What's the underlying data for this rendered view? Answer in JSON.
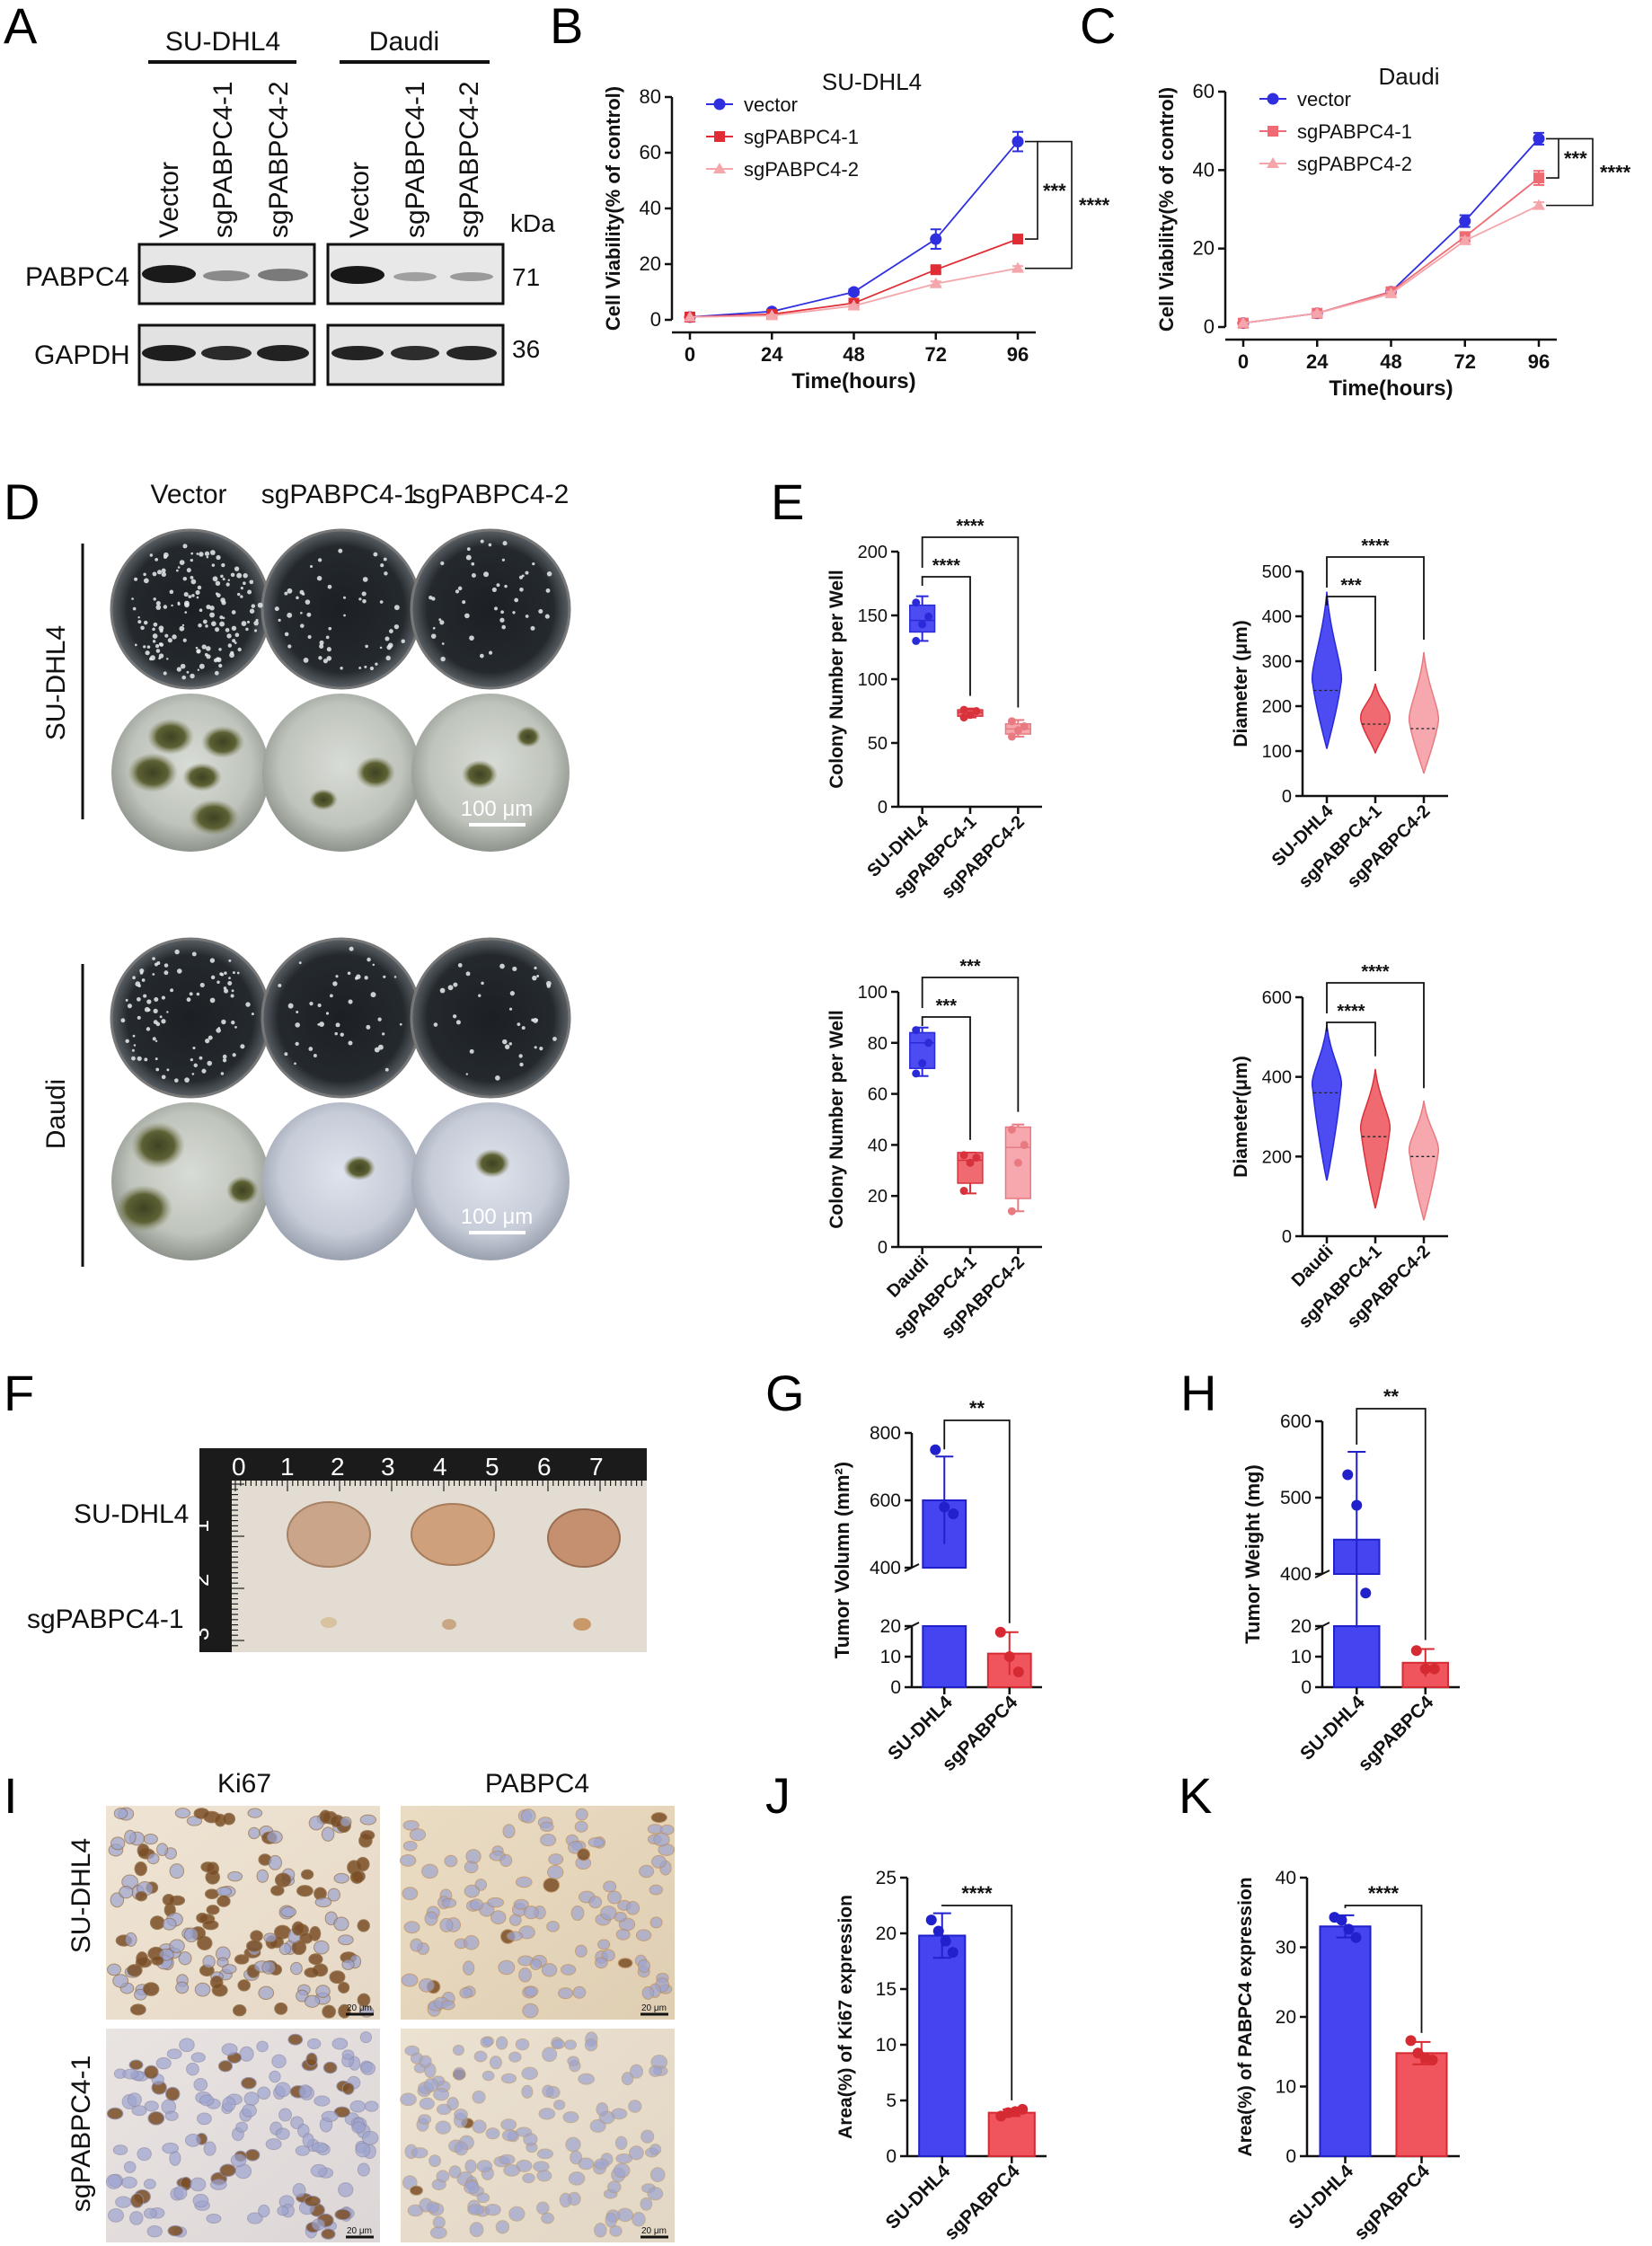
{
  "panel_labels": {
    "A": "A",
    "B": "B",
    "C": "C",
    "D": "D",
    "E": "E",
    "F": "F",
    "G": "G",
    "H": "H",
    "I": "I",
    "J": "J",
    "K": "K"
  },
  "colors": {
    "blue": "#3a3af0",
    "red": "#e8404a",
    "pink": "#f5aeb2",
    "light_red": "#f4878e"
  },
  "blot": {
    "groups": [
      "SU-DHL4",
      "Daudi"
    ],
    "lanes": [
      "Vector",
      "sgPABPC4-1",
      "sgPABPC4-2",
      "Vector",
      "sgPABPC4-1",
      "sgPABPC4-2"
    ],
    "rows": [
      "PABPC4",
      "GAPDH"
    ],
    "kda_label": "kDa",
    "kda": [
      "71",
      "36"
    ]
  },
  "panel_d": {
    "columns": [
      "Vector",
      "sgPABPC4-1",
      "sgPABPC4-2"
    ],
    "rows": [
      "SU-DHL4",
      "Daudi"
    ],
    "scale_bar": "100 μm"
  },
  "panel_f": {
    "rows": [
      "SU-DHL4",
      "sgPABPC4-1"
    ],
    "ruler_ticks": [
      "0",
      "1",
      "2",
      "3",
      "4",
      "5",
      "6",
      "7"
    ],
    "ruler_side": [
      "0",
      "1",
      "2",
      "3"
    ]
  },
  "panel_i": {
    "columns": [
      "Ki67",
      "PABPC4"
    ],
    "rows": [
      "SU-DHL4",
      "sgPABPC4-1"
    ],
    "scale_text": "20 μm"
  },
  "chart_data": [
    {
      "id": "B",
      "type": "line",
      "title": "SU-DHL4",
      "xlabel": "Time(hours)",
      "ylabel": "Cell Viability(% of control)",
      "x": [
        0,
        24,
        48,
        72,
        96
      ],
      "ylim": [
        0,
        80
      ],
      "yticks": [
        0,
        20,
        40,
        60,
        80
      ],
      "series": [
        {
          "name": "vector",
          "values": [
            1,
            3,
            10,
            29,
            64
          ],
          "err": [
            0,
            0.5,
            1,
            3.5,
            3.5
          ],
          "color": "#2f2fe0",
          "marker": "circle"
        },
        {
          "name": "sgPABPC4-1",
          "values": [
            1,
            2,
            6,
            18,
            29
          ],
          "err": [
            0,
            0.3,
            0.5,
            1,
            1
          ],
          "color": "#e02d35",
          "marker": "square"
        },
        {
          "name": "sgPABPC4-2",
          "values": [
            1,
            1.5,
            5,
            13,
            18.5
          ],
          "err": [
            0,
            0.3,
            0.4,
            0.8,
            0.8
          ],
          "color": "#f4a6ab",
          "marker": "triangle"
        }
      ],
      "significance": [
        "***",
        "****"
      ]
    },
    {
      "id": "C",
      "type": "line",
      "title": "Daudi",
      "xlabel": "Time(hours)",
      "ylabel": "Cell Viability(% of control)",
      "x": [
        0,
        24,
        48,
        72,
        96
      ],
      "ylim": [
        0,
        60
      ],
      "yticks": [
        0,
        20,
        40,
        60
      ],
      "series": [
        {
          "name": "vector",
          "values": [
            1,
            3.5,
            9,
            27,
            48
          ],
          "err": [
            0,
            0.4,
            0.6,
            1.5,
            1.5
          ],
          "color": "#2f2fe0",
          "marker": "circle"
        },
        {
          "name": "sgPABPC4-1",
          "values": [
            1,
            3.5,
            9,
            23,
            38
          ],
          "err": [
            0,
            0.4,
            0.6,
            1.2,
            1.8
          ],
          "color": "#ef6a72",
          "marker": "square"
        },
        {
          "name": "sgPABPC4-2",
          "values": [
            1,
            3.5,
            8.5,
            22,
            31
          ],
          "err": [
            0,
            0.3,
            0.5,
            0.8,
            0.8
          ],
          "color": "#f4a6ab",
          "marker": "triangle"
        }
      ],
      "significance": [
        "***",
        "****"
      ]
    },
    {
      "id": "E1",
      "type": "box",
      "ylabel": "Colony Number per Well",
      "categories": [
        "SU-DHL4",
        "sgPABPC4-1",
        "sgPABPC4-2"
      ],
      "ylim": [
        0,
        200
      ],
      "yticks": [
        0,
        50,
        100,
        150,
        200
      ],
      "boxes": [
        {
          "min": 130,
          "q1": 137,
          "median": 146,
          "q3": 158,
          "max": 165,
          "points": [
            130,
            143,
            149,
            160
          ]
        },
        {
          "min": 70,
          "q1": 71,
          "median": 74,
          "q3": 76,
          "max": 77,
          "points": [
            70,
            72,
            75,
            76
          ]
        },
        {
          "min": 55,
          "q1": 57,
          "median": 61,
          "q3": 65,
          "max": 68,
          "points": [
            55,
            60,
            63,
            67
          ]
        }
      ],
      "significance": [
        "****",
        "****"
      ]
    },
    {
      "id": "E2",
      "type": "violin",
      "ylabel": "Diameter (μm)",
      "categories": [
        "SU-DHL4",
        "sgPABPC4-1",
        "sgPABPC4-2"
      ],
      "ylim": [
        0,
        500
      ],
      "yticks": [
        0,
        100,
        200,
        300,
        400,
        500
      ],
      "violins": [
        {
          "min": 105,
          "median": 235,
          "max": 455,
          "peak": 250
        },
        {
          "min": 95,
          "median": 160,
          "max": 250,
          "peak": 165
        },
        {
          "min": 50,
          "median": 150,
          "max": 320,
          "peak": 160
        }
      ],
      "significance": [
        "***",
        "****"
      ]
    },
    {
      "id": "E3",
      "type": "box",
      "ylabel": "Colony Number per Well",
      "categories": [
        "Daudi",
        "sgPABPC4-1",
        "sgPABPC4-2"
      ],
      "ylim": [
        0,
        100
      ],
      "yticks": [
        0,
        20,
        40,
        60,
        80,
        100
      ],
      "boxes": [
        {
          "min": 67,
          "q1": 70,
          "median": 80,
          "q3": 84,
          "max": 86,
          "points": [
            68,
            72,
            80,
            85
          ]
        },
        {
          "min": 21,
          "q1": 25,
          "median": 34,
          "q3": 37,
          "max": 37,
          "points": [
            22,
            33,
            35,
            36
          ]
        },
        {
          "min": 14,
          "q1": 19,
          "median": 39,
          "q3": 47,
          "max": 48,
          "points": [
            14,
            33,
            40,
            46
          ]
        }
      ],
      "significance": [
        "***",
        "***"
      ]
    },
    {
      "id": "E4",
      "type": "violin",
      "ylabel": "Diameter(μm)",
      "categories": [
        "Daudi",
        "sgPABPC4-1",
        "sgPABPC4-2"
      ],
      "ylim": [
        0,
        600
      ],
      "yticks": [
        0,
        200,
        400,
        600
      ],
      "violins": [
        {
          "min": 140,
          "median": 360,
          "max": 530,
          "peak": 370
        },
        {
          "min": 70,
          "median": 250,
          "max": 420,
          "peak": 260
        },
        {
          "min": 40,
          "median": 200,
          "max": 340,
          "peak": 205
        }
      ],
      "significance": [
        "****",
        "****"
      ]
    },
    {
      "id": "G",
      "type": "bar",
      "ylabel": "Tumor Volumn (mm²)",
      "categories": [
        "SU-DHL4",
        "sgPABPC4"
      ],
      "axis_break": {
        "lower": [
          0,
          20
        ],
        "upper": [
          400,
          800
        ]
      },
      "lower_ticks": [
        0,
        10,
        20
      ],
      "upper_ticks": [
        400,
        600,
        800
      ],
      "values": [
        600,
        11
      ],
      "err": [
        130,
        7
      ],
      "points": [
        [
          750,
          580,
          560
        ],
        [
          18,
          10,
          5
        ]
      ],
      "significance": "**"
    },
    {
      "id": "H",
      "type": "bar",
      "ylabel": "Tumor Weight (mg)",
      "categories": [
        "SU-DHL4",
        "sgPABPC4"
      ],
      "axis_break": {
        "lower": [
          0,
          20
        ],
        "upper": [
          400,
          600
        ]
      },
      "lower_ticks": [
        0,
        10,
        20
      ],
      "upper_ticks": [
        400,
        500,
        600
      ],
      "values": [
        445,
        8
      ],
      "err": [
        115,
        4.5
      ],
      "points": [
        [
          530,
          490,
          375
        ],
        [
          12,
          6,
          6
        ]
      ],
      "significance": "**"
    },
    {
      "id": "J",
      "type": "bar",
      "ylabel": "Area(%) of Ki67 expression",
      "categories": [
        "SU-DHL4",
        "sgPABPC4"
      ],
      "ylim": [
        0,
        25
      ],
      "yticks": [
        0,
        5,
        10,
        15,
        20,
        25
      ],
      "values": [
        19.8,
        3.9
      ],
      "err": [
        2.0,
        0.3
      ],
      "points": [
        [
          21.2,
          20.2,
          19.3,
          18.3
        ],
        [
          3.6,
          3.9,
          4.0,
          4.2
        ]
      ],
      "significance": "****"
    },
    {
      "id": "K",
      "type": "bar",
      "ylabel": "Area(%) of PABPC4 expression",
      "categories": [
        "SU-DHL4",
        "sgPABPC4"
      ],
      "ylim": [
        0,
        40
      ],
      "yticks": [
        0,
        10,
        20,
        30,
        40
      ],
      "values": [
        33,
        14.8
      ],
      "err": [
        1.6,
        1.6
      ],
      "points": [
        [
          34.3,
          33.9,
          32.6,
          31.4
        ],
        [
          16.6,
          14.8,
          14.1,
          13.8
        ]
      ],
      "significance": "****"
    }
  ]
}
